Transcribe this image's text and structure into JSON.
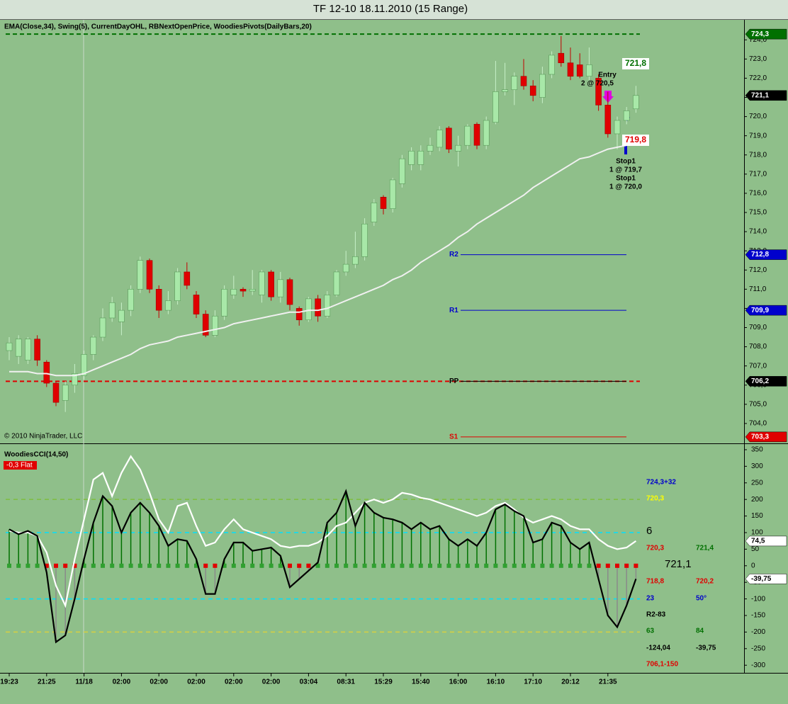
{
  "chart_data": [
    {
      "type": "candlestick",
      "title": "TF 12-10  18.11.2010 (15 Range)",
      "subtitle": "EMA(Close,34), Swing(5), CurrentDayOHL, RBNextOpenPrice, WoodiesPivots(DailyBars,20)",
      "copyright": "© 2010 NinjaTrader, LLC",
      "up_color": "#a8e8a8",
      "down_color": "#e00000",
      "open": [
        707.8,
        707.5,
        707.3,
        708.4,
        707.2,
        706.1,
        705.2,
        706.0,
        706.5,
        707.6,
        708.5,
        709.5,
        709.3,
        709.9,
        711.0,
        712.5,
        711.0,
        709.9,
        710.4,
        711.9,
        710.7,
        709.7,
        708.6,
        709.6,
        710.7,
        711.0,
        710.9,
        710.7,
        711.9,
        710.6,
        711.5,
        710.0,
        709.4,
        710.5,
        709.6,
        710.7,
        711.9,
        712.3,
        712.7,
        714.5,
        715.8,
        715.2,
        716.5,
        717.5,
        717.5,
        718.2,
        718.4,
        719.4,
        718.2,
        718.5,
        719.6,
        718.5,
        719.7,
        721.3,
        721.4,
        722.1,
        721.6,
        721.0,
        722.2,
        723.3,
        722.8,
        722.7,
        722.1,
        722.0,
        720.6,
        719.1,
        719.8,
        720.4
      ],
      "high": [
        708.5,
        708.6,
        708.5,
        708.6,
        707.3,
        706.2,
        706.2,
        707.1,
        707.8,
        708.6,
        710.0,
        710.6,
        710.3,
        711.2,
        712.7,
        712.6,
        711.2,
        710.9,
        712.1,
        712.4,
        710.9,
        709.9,
        709.9,
        711.2,
        711.7,
        711.1,
        712.0,
        712.0,
        712.0,
        711.9,
        711.6,
        710.1,
        710.6,
        710.7,
        710.9,
        712.0,
        713.0,
        714.0,
        714.7,
        715.7,
        715.9,
        716.8,
        718.0,
        718.4,
        718.5,
        718.9,
        719.5,
        719.5,
        719.0,
        719.6,
        719.7,
        720.0,
        722.9,
        722.8,
        722.3,
        723.0,
        721.9,
        722.6,
        723.4,
        724.2,
        723.6,
        723.3,
        723.6,
        722.2,
        721.3,
        720.0,
        720.5,
        721.6
      ],
      "low": [
        707.3,
        707.1,
        707.1,
        707.0,
        705.9,
        704.9,
        704.6,
        705.6,
        706.3,
        707.3,
        708.3,
        709.3,
        708.6,
        709.6,
        710.8,
        710.8,
        709.5,
        709.7,
        710.2,
        711.0,
        709.5,
        708.5,
        708.5,
        709.4,
        710.5,
        710.6,
        710.7,
        710.3,
        710.4,
        710.3,
        709.9,
        709.1,
        709.3,
        709.3,
        709.5,
        710.6,
        711.7,
        712.1,
        712.5,
        714.3,
        714.9,
        715.0,
        716.3,
        717.2,
        717.2,
        718.0,
        718.2,
        718.1,
        717.4,
        718.3,
        718.3,
        718.3,
        719.6,
        721.1,
        720.6,
        721.4,
        720.8,
        720.7,
        722.0,
        722.6,
        721.9,
        722.0,
        721.9,
        720.3,
        718.9,
        718.3,
        719.6,
        720.2
      ],
      "close": [
        708.2,
        708.4,
        708.4,
        707.3,
        706.1,
        705.1,
        706.0,
        706.6,
        707.6,
        708.5,
        709.5,
        710.3,
        709.9,
        711.0,
        712.5,
        711.0,
        709.9,
        710.4,
        711.9,
        711.2,
        709.7,
        708.6,
        709.6,
        711.0,
        711.0,
        710.9,
        711.0,
        711.9,
        710.6,
        711.5,
        710.2,
        709.4,
        710.5,
        709.6,
        710.7,
        711.9,
        712.3,
        712.7,
        714.4,
        715.5,
        715.2,
        716.7,
        717.8,
        718.2,
        718.2,
        718.5,
        719.3,
        718.3,
        718.5,
        719.5,
        718.5,
        719.8,
        721.3,
        721.4,
        722.1,
        721.6,
        721.1,
        722.2,
        723.2,
        722.8,
        722.1,
        722.1,
        722.7,
        720.6,
        719.1,
        719.8,
        720.3,
        721.1
      ],
      "last_close_label": "721,1",
      "series": [
        {
          "color": "#f0f0f0",
          "values": [
            706.7,
            706.7,
            706.7,
            706.6,
            706.6,
            706.5,
            706.5,
            706.5,
            706.6,
            706.8,
            707.0,
            707.2,
            707.4,
            707.6,
            707.9,
            708.1,
            708.2,
            708.3,
            708.5,
            708.6,
            708.7,
            708.8,
            708.9,
            709.0,
            709.2,
            709.3,
            709.4,
            709.5,
            709.6,
            709.7,
            709.8,
            709.8,
            709.9,
            709.9,
            710.0,
            710.2,
            710.4,
            710.6,
            710.8,
            711.0,
            711.2,
            711.5,
            711.7,
            712.0,
            712.4,
            712.7,
            713.0,
            713.3,
            713.7,
            714.0,
            714.4,
            714.7,
            715.0,
            715.3,
            715.6,
            715.9,
            716.3,
            716.6,
            716.9,
            717.2,
            717.5,
            717.8,
            717.9,
            718.1,
            718.3,
            718.4,
            718.5,
            718.6
          ]
        }
      ],
      "ylim": [
        703.0,
        724.6
      ],
      "yticks": [
        {
          "value": 704,
          "label": "704,0"
        },
        {
          "value": 705,
          "label": "705,0"
        },
        {
          "value": 706,
          "label": "706,0"
        },
        {
          "value": 707,
          "label": "707,0"
        },
        {
          "value": 708,
          "label": "708,0"
        },
        {
          "value": 709,
          "label": "709,0"
        },
        {
          "value": 710,
          "label": "710,0"
        },
        {
          "value": 711,
          "label": "711,0"
        },
        {
          "value": 712,
          "label": "712,0"
        },
        {
          "value": 713,
          "label": "713,0"
        },
        {
          "value": 714,
          "label": "714,0"
        },
        {
          "value": 715,
          "label": "715,0"
        },
        {
          "value": 716,
          "label": "716,0"
        },
        {
          "value": 717,
          "label": "717,0"
        },
        {
          "value": 718,
          "label": "718,0"
        },
        {
          "value": 719,
          "label": "719,0"
        },
        {
          "value": 720,
          "label": "720,0"
        },
        {
          "value": 721,
          "label": "721,0"
        },
        {
          "value": 722,
          "label": "722,0"
        },
        {
          "value": 723,
          "label": "723,0"
        },
        {
          "value": 724,
          "label": "724,0"
        }
      ],
      "dashed_lines": [
        {
          "value": 724.3,
          "label": "724,3",
          "color": "#007000"
        },
        {
          "value": 706.2,
          "color": "#e00000"
        }
      ],
      "levels": [
        {
          "label": "R2",
          "value": 712.8,
          "value_label": "712,8",
          "color": "#0000cc"
        },
        {
          "label": "R1",
          "value": 709.9,
          "value_label": "709,9",
          "color": "#0000cc"
        },
        {
          "label": "PP",
          "value": 706.2,
          "value_label": "706,2",
          "color": "#000000"
        },
        {
          "label": "S1",
          "value": 703.3,
          "value_label": "703,3",
          "color": "#e00000"
        }
      ],
      "range_labels": [
        {
          "label": "721,8",
          "color": "#007000"
        },
        {
          "label": "719,8",
          "color": "#e00000"
        }
      ],
      "annotations": [
        "Entry",
        "2 @ 720,5",
        "Stop1",
        "1 @ 719,7",
        "Stop1",
        "1 @ 720,0"
      ]
    },
    {
      "type": "cci",
      "title": "WoodiesCCI(14,50)",
      "status": "-0,3 Flat",
      "categories": [
        "19:23",
        null,
        null,
        null,
        "21:25",
        null,
        null,
        null,
        "11/18",
        null,
        null,
        null,
        "02:00",
        null,
        null,
        null,
        "02:00",
        null,
        null,
        null,
        "02:00",
        null,
        null,
        null,
        "02:00",
        null,
        null,
        null,
        "02:00",
        null,
        null,
        null,
        "03:04",
        null,
        null,
        null,
        "08:31",
        null,
        null,
        null,
        "15:29",
        null,
        null,
        null,
        "15:40",
        null,
        null,
        null,
        "16:00",
        null,
        null,
        null,
        "16:10",
        null,
        null,
        null,
        "17:10",
        null,
        null,
        null,
        "20:12",
        null,
        null,
        null,
        "21:35",
        null,
        null,
        null
      ],
      "series": [
        {
          "color": "#000000",
          "stem_color": "#007000",
          "neg_stem_color": "#8a8a8a",
          "last_value_label": "-39,75",
          "values": [
            110,
            95,
            105,
            90,
            -20,
            -230,
            -210,
            -100,
            20,
            130,
            210,
            180,
            100,
            160,
            190,
            160,
            120,
            60,
            80,
            75,
            20,
            -85,
            -85,
            20,
            70,
            70,
            45,
            50,
            55,
            30,
            -65,
            -40,
            -15,
            10,
            130,
            160,
            225,
            120,
            190,
            160,
            145,
            140,
            130,
            110,
            130,
            110,
            120,
            80,
            60,
            80,
            60,
            100,
            170,
            185,
            165,
            150,
            70,
            80,
            130,
            120,
            70,
            50,
            70,
            -40,
            -150,
            -185,
            -120,
            -39.75
          ]
        },
        {
          "color": "#ffffff",
          "last_value_label": "74,5",
          "values": [
            105,
            100,
            100,
            90,
            40,
            -60,
            -120,
            20,
            140,
            260,
            280,
            210,
            280,
            330,
            290,
            220,
            140,
            100,
            180,
            190,
            120,
            60,
            70,
            110,
            140,
            110,
            100,
            90,
            80,
            60,
            55,
            60,
            60,
            70,
            90,
            120,
            130,
            160,
            190,
            200,
            190,
            200,
            220,
            215,
            205,
            200,
            190,
            180,
            170,
            160,
            150,
            160,
            180,
            190,
            170,
            145,
            130,
            140,
            150,
            140,
            120,
            110,
            110,
            80,
            60,
            50,
            55,
            74.5
          ]
        }
      ],
      "hlines": [
        {
          "value": 200,
          "color": "#7fbf3f"
        },
        {
          "value": 100,
          "color": "#00e0ff"
        },
        {
          "value": -100,
          "color": "#00e0ff"
        },
        {
          "value": -200,
          "color": "#d8d040"
        }
      ],
      "ylim": [
        -323,
        367
      ],
      "yticks": [
        350,
        300,
        250,
        200,
        150,
        100,
        50,
        0,
        -50,
        -100,
        -150,
        -200,
        -250,
        -300
      ],
      "panel_texts": [
        {
          "text": "724,3+32",
          "color": "#0000cc"
        },
        {
          "text": "720,3",
          "color": "#ffff00"
        },
        {
          "text": "6",
          "color": "#000000"
        },
        {
          "text": "720,3",
          "color": "#e00000"
        },
        {
          "text": "721,4",
          "color": "#007000"
        },
        {
          "text": "721,1",
          "color": "#000000"
        },
        {
          "text": "718,8",
          "color": "#e00000"
        },
        {
          "text": "720,2",
          "color": "#e00000"
        },
        {
          "text": "23",
          "color": "#0000cc"
        },
        {
          "text": "50°",
          "color": "#0000cc"
        },
        {
          "text": "R2-83",
          "color": "#000000"
        },
        {
          "text": "63",
          "color": "#007000"
        },
        {
          "text": "84",
          "color": "#007000"
        },
        {
          "text": "-124,04",
          "color": "#000000"
        },
        {
          "text": "-39,75",
          "color": "#000000"
        },
        {
          "text": "706,1-150",
          "color": "#e00000"
        }
      ]
    }
  ]
}
